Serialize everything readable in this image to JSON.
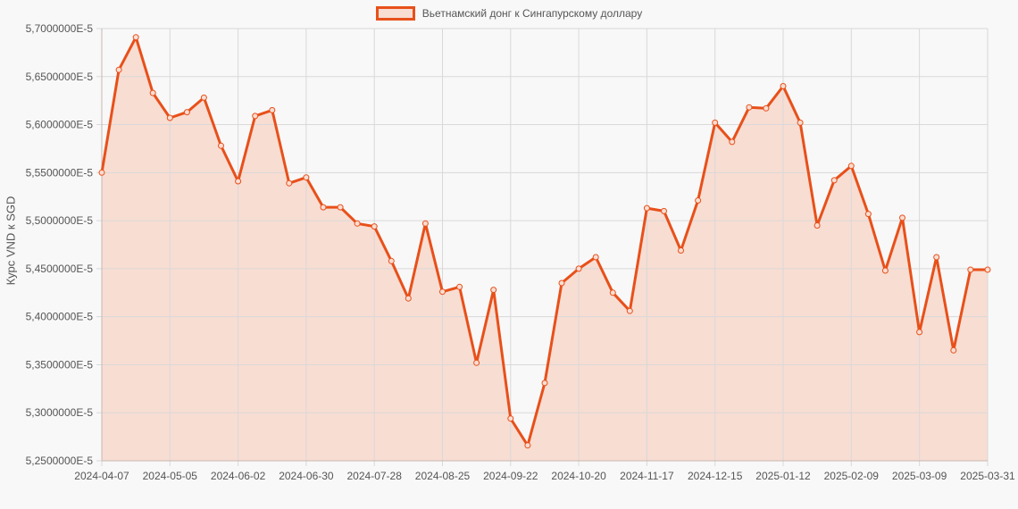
{
  "chart_data": {
    "type": "area",
    "title": "",
    "legend": [
      "Вьетнамский донг к Сингапурскому доллару"
    ],
    "legend_position": "top",
    "xlabel": "",
    "ylabel": "Курс VND к SGD",
    "ylim": [
      5.25e-05,
      5.7e-05
    ],
    "y_ticks": [
      "5,7000000E-5",
      "5,6500000E-5",
      "5,6000000E-5",
      "5,5500000E-5",
      "5,5000000E-5",
      "5,4500000E-5",
      "5,4000000E-5",
      "5,3500000E-5",
      "5,3000000E-5",
      "5,2500000E-5"
    ],
    "x_ticks": [
      "2024-04-07",
      "2024-05-05",
      "2024-06-02",
      "2024-06-30",
      "2024-07-28",
      "2024-08-25",
      "2024-09-22",
      "2024-10-20",
      "2024-11-17",
      "2024-12-15",
      "2025-01-12",
      "2025-02-09",
      "2025-03-09",
      "2025-03-31"
    ],
    "grid": true,
    "colors": {
      "line": "#e8501a",
      "fill": "#f8ddd2",
      "grid": "#d9d9d9",
      "background": "#f8f8f8"
    },
    "series": [
      {
        "name": "Вьетнамский донг к Сингапурскому доллару",
        "values_e5": [
          5.55,
          5.657,
          5.691,
          5.633,
          5.607,
          5.613,
          5.628,
          5.578,
          5.541,
          5.609,
          5.615,
          5.539,
          5.545,
          5.514,
          5.514,
          5.497,
          5.494,
          5.458,
          5.419,
          5.497,
          5.426,
          5.431,
          5.352,
          5.428,
          5.294,
          5.266,
          5.331,
          5.435,
          5.45,
          5.462,
          5.425,
          5.406,
          5.513,
          5.51,
          5.469,
          5.521,
          5.602,
          5.582,
          5.618,
          5.617,
          5.64,
          5.602,
          5.495,
          5.542,
          5.557,
          5.507,
          5.448,
          5.503,
          5.384,
          5.462,
          5.365,
          5.449,
          5.449
        ]
      }
    ]
  }
}
